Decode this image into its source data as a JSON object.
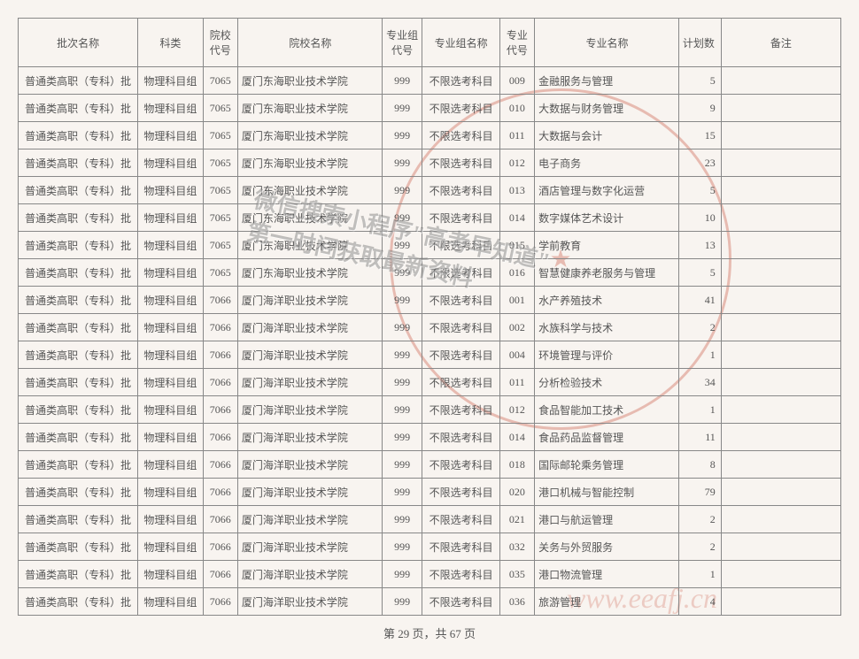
{
  "headers": {
    "batch": "批次名称",
    "subject": "科类",
    "school_code": "院校代号",
    "school_name": "院校名称",
    "group_code": "专业组代号",
    "group_name": "专业组名称",
    "major_code": "专业代号",
    "major_name": "专业名称",
    "plan": "计划数",
    "remark": "备注"
  },
  "footer": "第 29 页，共 67 页",
  "watermark_diag_1": "微信搜索小程序\"高考早知道\"",
  "watermark_diag_2": "第一时间获取最新资料",
  "watermark_url": "www.eeafj.cn",
  "stamp_center": "★",
  "rows": [
    {
      "batch": "普通类高职（专科）批",
      "subject": "物理科目组",
      "scode": "7065",
      "sname": "厦门东海职业技术学院",
      "gcode": "999",
      "gname": "不限选考科目",
      "mcode": "009",
      "mname": "金融服务与管理",
      "plan": "5",
      "remark": ""
    },
    {
      "batch": "普通类高职（专科）批",
      "subject": "物理科目组",
      "scode": "7065",
      "sname": "厦门东海职业技术学院",
      "gcode": "999",
      "gname": "不限选考科目",
      "mcode": "010",
      "mname": "大数据与财务管理",
      "plan": "9",
      "remark": ""
    },
    {
      "batch": "普通类高职（专科）批",
      "subject": "物理科目组",
      "scode": "7065",
      "sname": "厦门东海职业技术学院",
      "gcode": "999",
      "gname": "不限选考科目",
      "mcode": "011",
      "mname": "大数据与会计",
      "plan": "15",
      "remark": ""
    },
    {
      "batch": "普通类高职（专科）批",
      "subject": "物理科目组",
      "scode": "7065",
      "sname": "厦门东海职业技术学院",
      "gcode": "999",
      "gname": "不限选考科目",
      "mcode": "012",
      "mname": "电子商务",
      "plan": "23",
      "remark": ""
    },
    {
      "batch": "普通类高职（专科）批",
      "subject": "物理科目组",
      "scode": "7065",
      "sname": "厦门东海职业技术学院",
      "gcode": "999",
      "gname": "不限选考科目",
      "mcode": "013",
      "mname": "酒店管理与数字化运营",
      "plan": "5",
      "remark": ""
    },
    {
      "batch": "普通类高职（专科）批",
      "subject": "物理科目组",
      "scode": "7065",
      "sname": "厦门东海职业技术学院",
      "gcode": "999",
      "gname": "不限选考科目",
      "mcode": "014",
      "mname": "数字媒体艺术设计",
      "plan": "10",
      "remark": ""
    },
    {
      "batch": "普通类高职（专科）批",
      "subject": "物理科目组",
      "scode": "7065",
      "sname": "厦门东海职业技术学院",
      "gcode": "999",
      "gname": "不限选考科目",
      "mcode": "015",
      "mname": "学前教育",
      "plan": "13",
      "remark": ""
    },
    {
      "batch": "普通类高职（专科）批",
      "subject": "物理科目组",
      "scode": "7065",
      "sname": "厦门东海职业技术学院",
      "gcode": "999",
      "gname": "不限选考科目",
      "mcode": "016",
      "mname": "智慧健康养老服务与管理",
      "plan": "5",
      "remark": ""
    },
    {
      "batch": "普通类高职（专科）批",
      "subject": "物理科目组",
      "scode": "7066",
      "sname": "厦门海洋职业技术学院",
      "gcode": "999",
      "gname": "不限选考科目",
      "mcode": "001",
      "mname": "水产养殖技术",
      "plan": "41",
      "remark": ""
    },
    {
      "batch": "普通类高职（专科）批",
      "subject": "物理科目组",
      "scode": "7066",
      "sname": "厦门海洋职业技术学院",
      "gcode": "999",
      "gname": "不限选考科目",
      "mcode": "002",
      "mname": "水族科学与技术",
      "plan": "2",
      "remark": ""
    },
    {
      "batch": "普通类高职（专科）批",
      "subject": "物理科目组",
      "scode": "7066",
      "sname": "厦门海洋职业技术学院",
      "gcode": "999",
      "gname": "不限选考科目",
      "mcode": "004",
      "mname": "环境管理与评价",
      "plan": "1",
      "remark": ""
    },
    {
      "batch": "普通类高职（专科）批",
      "subject": "物理科目组",
      "scode": "7066",
      "sname": "厦门海洋职业技术学院",
      "gcode": "999",
      "gname": "不限选考科目",
      "mcode": "011",
      "mname": "分析检验技术",
      "plan": "34",
      "remark": ""
    },
    {
      "batch": "普通类高职（专科）批",
      "subject": "物理科目组",
      "scode": "7066",
      "sname": "厦门海洋职业技术学院",
      "gcode": "999",
      "gname": "不限选考科目",
      "mcode": "012",
      "mname": "食品智能加工技术",
      "plan": "1",
      "remark": ""
    },
    {
      "batch": "普通类高职（专科）批",
      "subject": "物理科目组",
      "scode": "7066",
      "sname": "厦门海洋职业技术学院",
      "gcode": "999",
      "gname": "不限选考科目",
      "mcode": "014",
      "mname": "食品药品监督管理",
      "plan": "11",
      "remark": ""
    },
    {
      "batch": "普通类高职（专科）批",
      "subject": "物理科目组",
      "scode": "7066",
      "sname": "厦门海洋职业技术学院",
      "gcode": "999",
      "gname": "不限选考科目",
      "mcode": "018",
      "mname": "国际邮轮乘务管理",
      "plan": "8",
      "remark": ""
    },
    {
      "batch": "普通类高职（专科）批",
      "subject": "物理科目组",
      "scode": "7066",
      "sname": "厦门海洋职业技术学院",
      "gcode": "999",
      "gname": "不限选考科目",
      "mcode": "020",
      "mname": "港口机械与智能控制",
      "plan": "79",
      "remark": ""
    },
    {
      "batch": "普通类高职（专科）批",
      "subject": "物理科目组",
      "scode": "7066",
      "sname": "厦门海洋职业技术学院",
      "gcode": "999",
      "gname": "不限选考科目",
      "mcode": "021",
      "mname": "港口与航运管理",
      "plan": "2",
      "remark": ""
    },
    {
      "batch": "普通类高职（专科）批",
      "subject": "物理科目组",
      "scode": "7066",
      "sname": "厦门海洋职业技术学院",
      "gcode": "999",
      "gname": "不限选考科目",
      "mcode": "032",
      "mname": "关务与外贸服务",
      "plan": "2",
      "remark": ""
    },
    {
      "batch": "普通类高职（专科）批",
      "subject": "物理科目组",
      "scode": "7066",
      "sname": "厦门海洋职业技术学院",
      "gcode": "999",
      "gname": "不限选考科目",
      "mcode": "035",
      "mname": "港口物流管理",
      "plan": "1",
      "remark": ""
    },
    {
      "batch": "普通类高职（专科）批",
      "subject": "物理科目组",
      "scode": "7066",
      "sname": "厦门海洋职业技术学院",
      "gcode": "999",
      "gname": "不限选考科目",
      "mcode": "036",
      "mname": "旅游管理",
      "plan": "4",
      "remark": ""
    }
  ]
}
